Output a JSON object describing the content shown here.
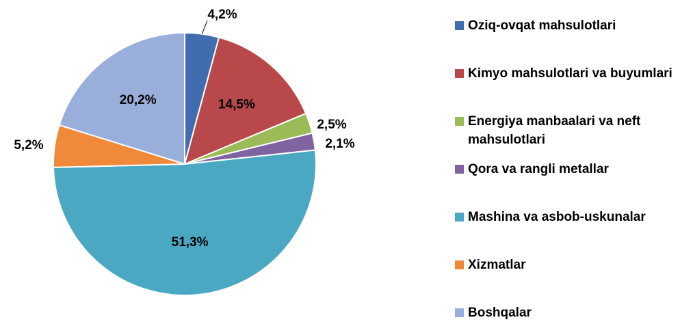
{
  "chart_data": {
    "type": "pie",
    "categories": [
      "Oziq-ovqat mahsulotlari",
      "Kimyo mahsulotlari va buyumlari",
      "Energiya manbaalari va neft mahsulotlari",
      "Qora va rangli metallar",
      "Mashina va asbob-uskunalar",
      "Xizmatlar",
      "Boshqalar"
    ],
    "values": [
      4.2,
      14.5,
      2.5,
      2.1,
      51.3,
      5.2,
      20.2
    ],
    "value_labels": [
      "4,2%",
      "14,5%",
      "2,5%",
      "2,1%",
      "51,3%",
      "5,2%",
      "20,2%"
    ],
    "colors": [
      "#3f6db0",
      "#b9484a",
      "#9bbb59",
      "#8064a2",
      "#4aa8c2",
      "#f08a3a",
      "#9aaedb"
    ],
    "legend": "right"
  }
}
